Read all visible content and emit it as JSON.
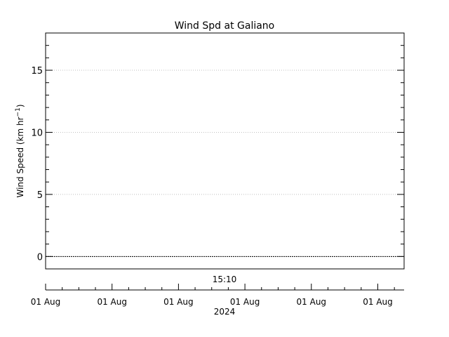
{
  "chart_data": {
    "type": "line",
    "title": "Wind Spd at Galiano",
    "ylabel_main": "Wind Speed (km hr",
    "ylabel_sup": "−1",
    "ylabel_close": ")",
    "xlabel": "2024",
    "annotation": "15:10",
    "ylim": [
      -1,
      18
    ],
    "yticks_major": [
      0,
      5,
      10,
      15
    ],
    "ytick_labels": [
      "0",
      "5",
      "10",
      "15"
    ],
    "yticks_minor_step": 1,
    "xticks": [
      "01 Aug",
      "01 Aug",
      "01 Aug",
      "01 Aug",
      "01 Aug",
      "01 Aug"
    ],
    "grid": true,
    "series": [
      {
        "x": [],
        "y": []
      }
    ],
    "baseline_value": 0,
    "colors": {
      "axis": "#000000",
      "grid": "#bfbfbf",
      "background": "#ffffff"
    }
  }
}
